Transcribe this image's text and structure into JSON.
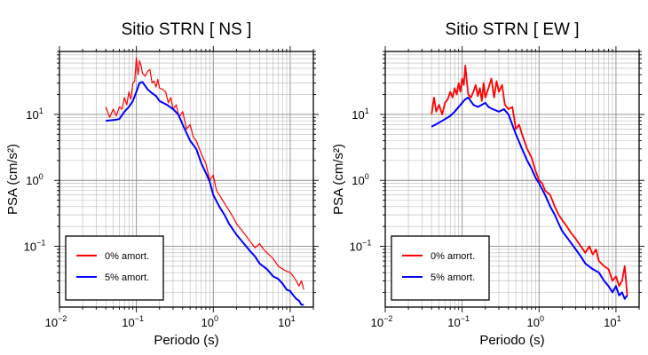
{
  "chart_data": [
    {
      "type": "line",
      "title": "Sitio STRN [ NS ]",
      "xlabel": "Periodo (s)",
      "ylabel": "PSA (cm/s²)",
      "xscale": "log",
      "yscale": "log",
      "xlim": [
        0.01,
        20
      ],
      "ylim": [
        0.012,
        90
      ],
      "grid": true,
      "legend_position": "bottom-left",
      "xticks": [
        {
          "value": 0.01,
          "base": "10",
          "exp": "−2"
        },
        {
          "value": 0.1,
          "base": "10",
          "exp": "−1"
        },
        {
          "value": 1,
          "base": "10",
          "exp": "0"
        },
        {
          "value": 10,
          "base": "10",
          "exp": "1"
        }
      ],
      "yticks": [
        {
          "value": 0.1,
          "base": "10",
          "exp": "−1"
        },
        {
          "value": 1,
          "base": "10",
          "exp": "0"
        },
        {
          "value": 10,
          "base": "10",
          "exp": "1"
        }
      ],
      "series": [
        {
          "name": "0% amort.",
          "color": "#ff0000",
          "x": [
            0.04,
            0.045,
            0.05,
            0.055,
            0.06,
            0.065,
            0.07,
            0.075,
            0.08,
            0.085,
            0.09,
            0.095,
            0.1,
            0.105,
            0.11,
            0.115,
            0.12,
            0.13,
            0.14,
            0.15,
            0.16,
            0.17,
            0.18,
            0.19,
            0.2,
            0.22,
            0.24,
            0.26,
            0.28,
            0.3,
            0.33,
            0.36,
            0.4,
            0.45,
            0.5,
            0.55,
            0.6,
            0.7,
            0.8,
            0.9,
            1.0,
            1.1,
            1.2,
            1.4,
            1.6,
            1.8,
            2.0,
            2.3,
            2.6,
            3.0,
            3.5,
            4.0,
            4.5,
            5.0,
            6.0,
            7.0,
            8.0,
            9.0,
            10.0,
            11.0,
            12.0,
            13.0,
            14.0,
            15.0
          ],
          "values": [
            13,
            9,
            12,
            9.5,
            13,
            12,
            18,
            14,
            22,
            17,
            30,
            32,
            72,
            40,
            65,
            55,
            42,
            38,
            45,
            48,
            30,
            32,
            26,
            34,
            25,
            24,
            22,
            15,
            18,
            12,
            14,
            9,
            11,
            6,
            7,
            4.5,
            4,
            2.5,
            1.8,
            1.0,
            1.2,
            0.7,
            0.6,
            0.45,
            0.35,
            0.28,
            0.22,
            0.18,
            0.15,
            0.12,
            0.095,
            0.11,
            0.09,
            0.08,
            0.065,
            0.05,
            0.045,
            0.042,
            0.04,
            0.035,
            0.03,
            0.025,
            0.03,
            0.022
          ]
        },
        {
          "name": "5% amort.",
          "color": "#0000ff",
          "x": [
            0.04,
            0.05,
            0.06,
            0.07,
            0.08,
            0.09,
            0.1,
            0.11,
            0.12,
            0.14,
            0.16,
            0.18,
            0.2,
            0.25,
            0.3,
            0.35,
            0.4,
            0.5,
            0.6,
            0.7,
            0.8,
            0.9,
            1.0,
            1.2,
            1.4,
            1.6,
            1.8,
            2.0,
            2.5,
            3.0,
            3.5,
            4.0,
            5.0,
            6.0,
            7.0,
            8.0,
            9.0,
            10.0,
            11.0,
            12.0,
            13.0,
            14.0,
            15.0
          ],
          "values": [
            8,
            8.2,
            8.5,
            11,
            13,
            16,
            22,
            30,
            31,
            24,
            21,
            19,
            16,
            14,
            12,
            10,
            7,
            4,
            3,
            1.8,
            1.3,
            0.95,
            0.6,
            0.4,
            0.3,
            0.22,
            0.18,
            0.15,
            0.11,
            0.085,
            0.07,
            0.055,
            0.045,
            0.035,
            0.032,
            0.027,
            0.022,
            0.021,
            0.018,
            0.016,
            0.015,
            0.013,
            0.013
          ]
        }
      ]
    },
    {
      "type": "line",
      "title": "Sitio STRN [ EW ]",
      "xlabel": "Periodo (s)",
      "ylabel": "PSA (cm/s²)",
      "xscale": "log",
      "yscale": "log",
      "xlim": [
        0.01,
        20
      ],
      "ylim": [
        0.012,
        90
      ],
      "grid": true,
      "legend_position": "bottom-left",
      "xticks": [
        {
          "value": 0.01,
          "base": "10",
          "exp": "−2"
        },
        {
          "value": 0.1,
          "base": "10",
          "exp": "−1"
        },
        {
          "value": 1,
          "base": "10",
          "exp": "0"
        },
        {
          "value": 10,
          "base": "10",
          "exp": "1"
        }
      ],
      "yticks": [
        {
          "value": 0.1,
          "base": "10",
          "exp": "−1"
        },
        {
          "value": 1,
          "base": "10",
          "exp": "0"
        },
        {
          "value": 10,
          "base": "10",
          "exp": "1"
        }
      ],
      "series": [
        {
          "name": "0% amort.",
          "color": "#ff0000",
          "x": [
            0.04,
            0.043,
            0.046,
            0.05,
            0.055,
            0.06,
            0.065,
            0.07,
            0.075,
            0.08,
            0.085,
            0.09,
            0.095,
            0.1,
            0.105,
            0.11,
            0.115,
            0.12,
            0.13,
            0.14,
            0.15,
            0.16,
            0.17,
            0.18,
            0.19,
            0.2,
            0.22,
            0.24,
            0.26,
            0.28,
            0.3,
            0.33,
            0.36,
            0.4,
            0.45,
            0.5,
            0.55,
            0.6,
            0.7,
            0.8,
            0.9,
            1.0,
            1.1,
            1.2,
            1.4,
            1.6,
            1.8,
            2.0,
            2.3,
            2.6,
            3.0,
            3.5,
            4.0,
            4.5,
            5.0,
            5.5,
            6.0,
            7.0,
            8.0,
            9.0,
            10.0,
            11.0,
            12.0,
            13.0,
            14.0
          ],
          "values": [
            10,
            18,
            11,
            14,
            10,
            15,
            17,
            22,
            18,
            25,
            20,
            30,
            22,
            35,
            28,
            55,
            32,
            20,
            18,
            22,
            28,
            19,
            25,
            16,
            30,
            18,
            25,
            35,
            18,
            32,
            22,
            28,
            14,
            12,
            13,
            6,
            7,
            5,
            3,
            2.2,
            1.4,
            1.0,
            0.9,
            0.7,
            0.6,
            0.4,
            0.3,
            0.25,
            0.2,
            0.16,
            0.13,
            0.1,
            0.08,
            0.1,
            0.075,
            0.09,
            0.06,
            0.05,
            0.045,
            0.03,
            0.035,
            0.025,
            0.03,
            0.05,
            0.018
          ]
        },
        {
          "name": "5% amort.",
          "color": "#0000ff",
          "x": [
            0.04,
            0.05,
            0.06,
            0.07,
            0.08,
            0.09,
            0.1,
            0.11,
            0.12,
            0.14,
            0.16,
            0.18,
            0.2,
            0.22,
            0.25,
            0.3,
            0.35,
            0.4,
            0.5,
            0.6,
            0.7,
            0.8,
            0.9,
            1.0,
            1.2,
            1.4,
            1.6,
            1.8,
            2.0,
            2.5,
            3.0,
            3.5,
            4.0,
            5.0,
            6.0,
            7.0,
            8.0,
            9.0,
            10.0,
            11.0,
            12.0,
            13.0,
            14.0
          ],
          "values": [
            6.5,
            7.5,
            8.5,
            9.5,
            11,
            13,
            15,
            17,
            18,
            14,
            13,
            14,
            15,
            13,
            12,
            11,
            12,
            10,
            5,
            3,
            2,
            1.5,
            1.1,
            0.9,
            0.6,
            0.4,
            0.3,
            0.22,
            0.17,
            0.12,
            0.09,
            0.07,
            0.055,
            0.045,
            0.04,
            0.03,
            0.025,
            0.02,
            0.025,
            0.018,
            0.02,
            0.016,
            0.018
          ]
        }
      ]
    }
  ]
}
